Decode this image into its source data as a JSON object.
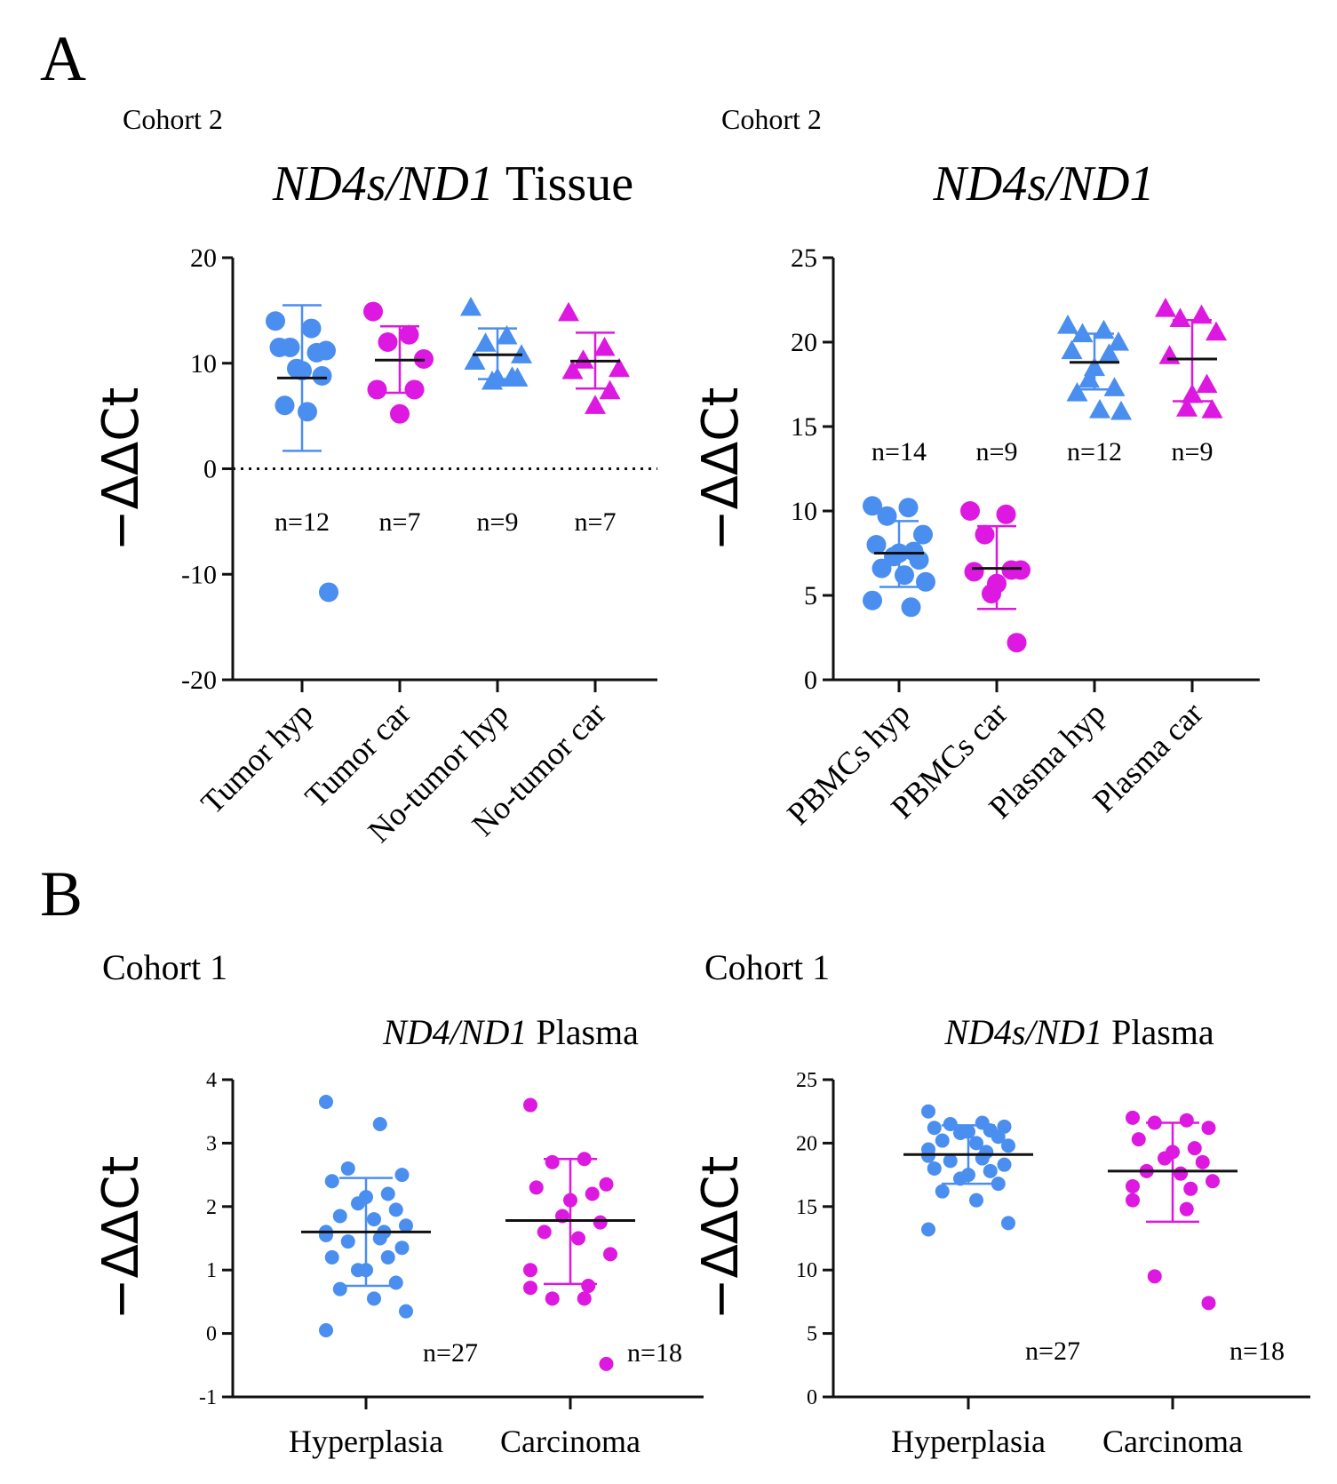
{
  "panels": {
    "A": "A",
    "B": "B"
  },
  "colors": {
    "blue": "#4a8ef0",
    "magenta": "#dd18e0",
    "black": "#111111"
  },
  "chart_data": [
    {
      "id": "A-left",
      "type": "scatter",
      "cohort": "Cohort 2",
      "title_italic": "ND4s/ND1",
      "title_rest": " Tissue",
      "ylabel": "−ΔΔCt",
      "ylim": [
        -20,
        20
      ],
      "yticks": [
        -20,
        -10,
        0,
        10,
        20
      ],
      "ytick_labels": [
        "-20",
        "-10",
        "0",
        "10",
        "20"
      ],
      "zero_line": true,
      "rotated_categories": true,
      "categories": [
        "Tumor hyp",
        "Tumor car",
        "No-tumor hyp",
        "No-tumor car"
      ],
      "series": [
        {
          "category": "Tumor hyp",
          "color": "#4a8ef0",
          "marker": "circle",
          "n_label": "n=12",
          "mean": 8.6,
          "sd_low": 1.7,
          "sd_high": 15.5,
          "points": [
            14,
            13.3,
            11.5,
            11.2,
            11.5,
            11,
            9.3,
            9.5,
            8.8,
            6,
            5.4,
            -11.7
          ]
        },
        {
          "category": "Tumor car",
          "color": "#dd18e0",
          "marker": "circle",
          "n_label": "n=7",
          "mean": 10.3,
          "sd_low": 7.2,
          "sd_high": 13.5,
          "points": [
            14.9,
            12.7,
            12,
            10.4,
            7.5,
            7.5,
            5.2
          ]
        },
        {
          "category": "No-tumor hyp",
          "color": "#4a8ef0",
          "marker": "triangle",
          "n_label": "n=9",
          "mean": 10.8,
          "sd_low": 8.5,
          "sd_high": 13.3,
          "points": [
            15.3,
            12.6,
            11.9,
            10.8,
            10.2,
            8.7,
            8.6,
            8.3,
            8.6
          ]
        },
        {
          "category": "No-tumor car",
          "color": "#dd18e0",
          "marker": "triangle",
          "n_label": "n=7",
          "mean": 10.2,
          "sd_low": 7.6,
          "sd_high": 12.9,
          "points": [
            14.8,
            11.5,
            10.3,
            9.5,
            9.3,
            7.4,
            6.0
          ]
        }
      ]
    },
    {
      "id": "A-right",
      "type": "scatter",
      "cohort": "Cohort 2",
      "title_italic": "ND4s/ND1",
      "title_rest": "",
      "ylabel": "−ΔΔCt",
      "ylim": [
        0,
        25
      ],
      "yticks": [
        0,
        5,
        10,
        15,
        20,
        25
      ],
      "ytick_labels": [
        "0",
        "5",
        "10",
        "15",
        "20",
        "25"
      ],
      "zero_line": false,
      "rotated_categories": true,
      "categories": [
        "PBMCs hyp",
        "PBMCs car",
        "Plasma hyp",
        "Plasma car"
      ],
      "series": [
        {
          "category": "PBMCs hyp",
          "color": "#4a8ef0",
          "marker": "circle",
          "n_label": "n=14",
          "mean": 7.5,
          "sd_low": 5.5,
          "sd_high": 9.4,
          "points": [
            10.3,
            10.2,
            9.7,
            8.6,
            8.0,
            7.6,
            7.5,
            7.3,
            7.1,
            6.6,
            6.2,
            5.8,
            4.7,
            4.3
          ]
        },
        {
          "category": "PBMCs car",
          "color": "#dd18e0",
          "marker": "circle",
          "n_label": "n=9",
          "mean": 6.6,
          "sd_low": 4.2,
          "sd_high": 9.1,
          "points": [
            10.0,
            9.8,
            8.6,
            6.5,
            6.4,
            6.5,
            5.7,
            5.1,
            2.2
          ]
        },
        {
          "category": "Plasma hyp",
          "color": "#4a8ef0",
          "marker": "triangle",
          "n_label": "n=12",
          "mean": 18.8,
          "sd_low": 17.2,
          "sd_high": 20.5,
          "points": [
            21.0,
            20.7,
            20.5,
            20.0,
            19.5,
            19.3,
            18.5,
            17.8,
            17.3,
            17.0,
            16.0,
            15.9
          ]
        },
        {
          "category": "Plasma car",
          "color": "#dd18e0",
          "marker": "triangle",
          "n_label": "n=9",
          "mean": 19.0,
          "sd_low": 16.5,
          "sd_high": 21.3,
          "points": [
            22.0,
            21.6,
            21.4,
            20.6,
            19.2,
            17.5,
            16.9,
            16.1,
            16.0
          ]
        }
      ]
    },
    {
      "id": "B-left",
      "type": "scatter",
      "cohort": "Cohort 1",
      "title_italic": "ND4/ND1",
      "title_rest": " Plasma",
      "ylabel": "−ΔΔCt",
      "ylim": [
        -1,
        4
      ],
      "yticks": [
        -1,
        0,
        1,
        2,
        3,
        4
      ],
      "ytick_labels": [
        "-1",
        "0",
        "1",
        "2",
        "3",
        "4"
      ],
      "zero_line": false,
      "rotated_categories": false,
      "categories": [
        "Hyperplasia",
        "Carcinoma"
      ],
      "series": [
        {
          "category": "Hyperplasia",
          "color": "#4a8ef0",
          "marker": "circle",
          "n_label": "n=27",
          "mean": 1.6,
          "sd_low": 0.75,
          "sd_high": 2.45,
          "points": [
            3.65,
            3.3,
            2.6,
            2.5,
            2.4,
            2.2,
            2.15,
            2.05,
            1.95,
            1.85,
            1.8,
            1.7,
            1.6,
            1.6,
            1.55,
            1.5,
            1.45,
            1.35,
            1.2,
            1.2,
            1.0,
            1.0,
            0.8,
            0.7,
            0.55,
            0.35,
            0.05
          ]
        },
        {
          "category": "Carcinoma",
          "color": "#dd18e0",
          "marker": "circle",
          "n_label": "n=18",
          "mean": 1.78,
          "sd_low": 0.78,
          "sd_high": 2.75,
          "points": [
            3.6,
            2.75,
            2.7,
            2.35,
            2.3,
            2.2,
            2.1,
            1.85,
            1.75,
            1.6,
            1.5,
            1.25,
            1.0,
            0.75,
            0.72,
            0.55,
            0.55,
            -0.48
          ]
        }
      ]
    },
    {
      "id": "B-right",
      "type": "scatter",
      "cohort": "Cohort 1",
      "title_italic": "ND4s/ND1",
      "title_rest": " Plasma",
      "ylabel": "−ΔΔCt",
      "ylim": [
        0,
        25
      ],
      "yticks": [
        0,
        5,
        10,
        15,
        20,
        25
      ],
      "ytick_labels": [
        "0",
        "5",
        "10",
        "15",
        "20",
        "25"
      ],
      "zero_line": false,
      "rotated_categories": false,
      "categories": [
        "Hyperplasia",
        "Carcinoma"
      ],
      "series": [
        {
          "category": "Hyperplasia",
          "color": "#4a8ef0",
          "marker": "circle",
          "n_label": "n=27",
          "mean": 19.1,
          "sd_low": 16.8,
          "sd_high": 21.4,
          "points": [
            22.5,
            21.6,
            21.5,
            21.3,
            21.2,
            21.0,
            20.9,
            20.8,
            20.5,
            20.2,
            20.0,
            19.8,
            19.5,
            19.3,
            19.0,
            18.8,
            18.6,
            18.3,
            18.0,
            17.8,
            17.5,
            17.2,
            16.8,
            16.2,
            15.5,
            13.7,
            13.2
          ]
        },
        {
          "category": "Carcinoma",
          "color": "#dd18e0",
          "marker": "circle",
          "n_label": "n=18",
          "mean": 17.8,
          "sd_low": 13.8,
          "sd_high": 21.6,
          "points": [
            22.0,
            21.8,
            21.6,
            21.2,
            20.3,
            19.6,
            19.3,
            18.8,
            18.5,
            17.8,
            17.6,
            17.0,
            16.6,
            16.4,
            15.5,
            14.8,
            9.5,
            7.4
          ]
        }
      ]
    }
  ]
}
